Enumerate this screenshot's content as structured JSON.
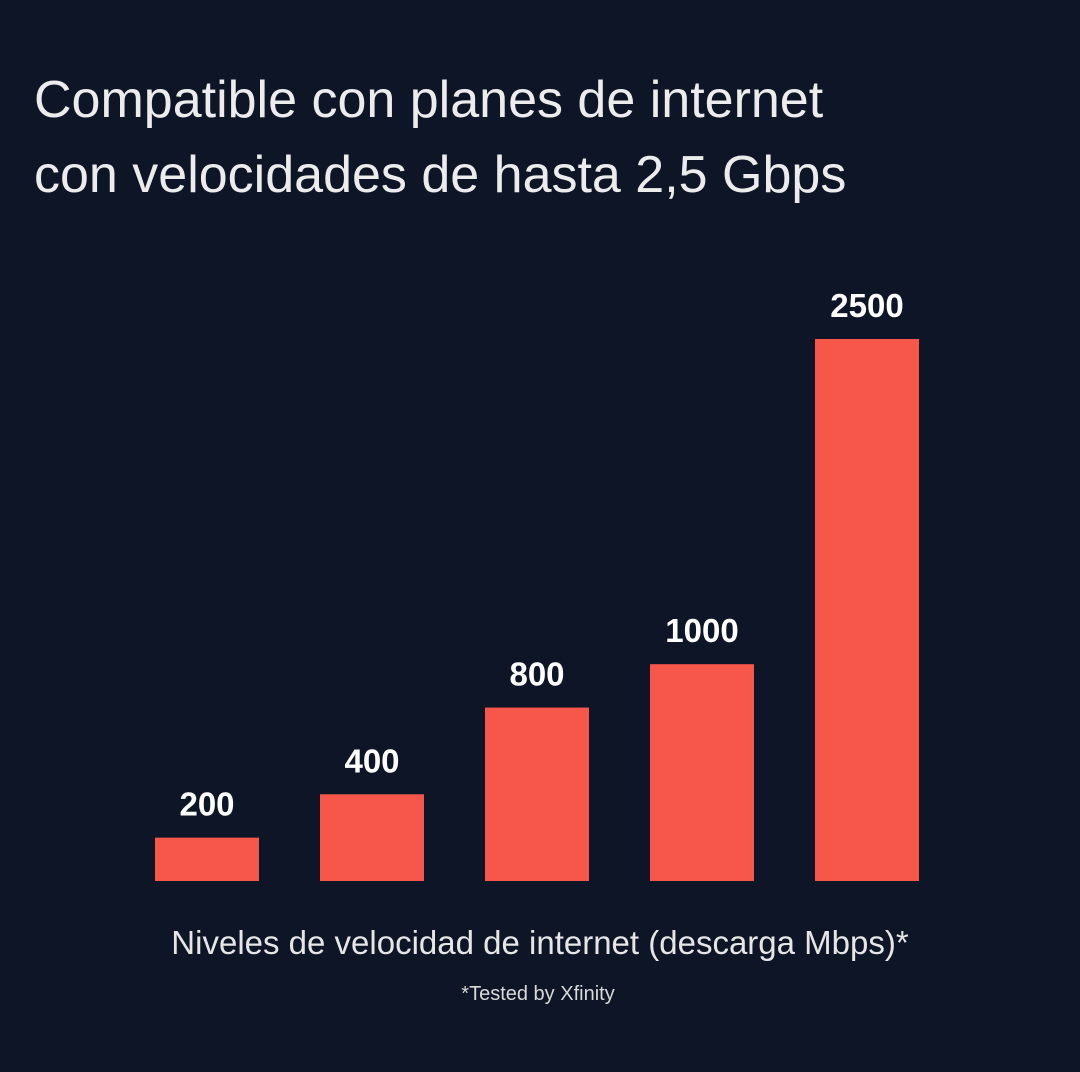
{
  "chart_data": {
    "type": "bar",
    "title": [
      "Compatible con planes de internet",
      "con velocidades de hasta 2,5 Gbps"
    ],
    "values": [
      200,
      400,
      800,
      1000,
      2500
    ],
    "color": "#f7564a",
    "x_label": "Niveles de velocidad de internet (descarga Mbps)*",
    "footnote": "*Tested by Xfinity"
  }
}
